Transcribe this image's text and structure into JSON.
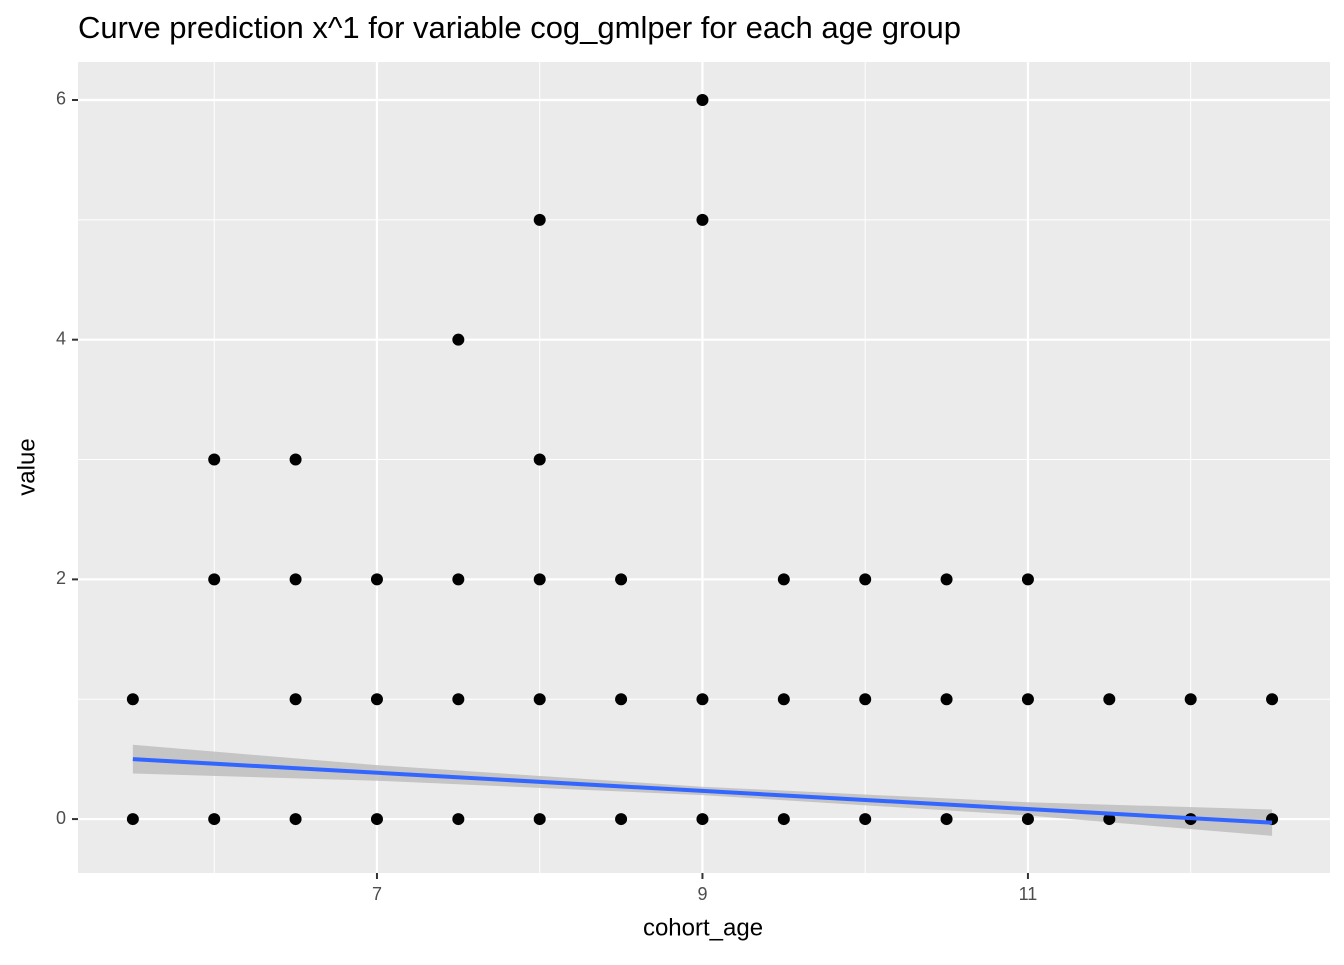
{
  "chart_data": {
    "type": "scatter",
    "title": "Curve prediction x^1  for variable cog_gmlper for each age group",
    "x_label": "cohort_age",
    "y_label": "value",
    "xlim": [
      5.163,
      12.856
    ],
    "ylim": [
      -0.45,
      6.317
    ],
    "xticks": [
      7,
      9,
      11
    ],
    "yticks": [
      0,
      2,
      4,
      6
    ],
    "x_minor_ticks": [
      6,
      8,
      10,
      12
    ],
    "y_minor_ticks": [
      1,
      3,
      5
    ],
    "grid": true,
    "series": [
      {
        "type": "band",
        "color": "#bebebe",
        "x": [
          5.5,
          7,
          9,
          11,
          12.5
        ],
        "lower": [
          0.38,
          0.32,
          0.2,
          0.03,
          -0.14
        ],
        "upper": [
          0.62,
          0.45,
          0.27,
          0.14,
          0.08
        ]
      },
      {
        "type": "scatter",
        "color": "#000000",
        "x": [
          5.5,
          5.5,
          6,
          6,
          6,
          6.5,
          6.5,
          6.5,
          6.5,
          7,
          7,
          7,
          7.5,
          7.5,
          7.5,
          7.5,
          8,
          8,
          8,
          8,
          8,
          8.5,
          8.5,
          8.5,
          9,
          9,
          9,
          9,
          9.5,
          9.5,
          9.5,
          10,
          10,
          10,
          10.5,
          10.5,
          10.5,
          11,
          11,
          11,
          11.5,
          11.5,
          12,
          12,
          12.5,
          12.5
        ],
        "values": [
          0,
          1,
          0,
          2,
          3,
          0,
          1,
          2,
          3,
          0,
          1,
          2,
          0,
          1,
          2,
          4,
          0,
          1,
          2,
          3,
          5,
          0,
          1,
          2,
          0,
          1,
          5,
          6,
          0,
          1,
          2,
          0,
          1,
          2,
          0,
          1,
          2,
          0,
          1,
          2,
          0,
          1,
          0,
          1,
          0,
          1
        ]
      },
      {
        "type": "line",
        "color": "#3366ff",
        "x": [
          5.5,
          12.5
        ],
        "values": [
          0.5,
          -0.03
        ]
      }
    ]
  }
}
